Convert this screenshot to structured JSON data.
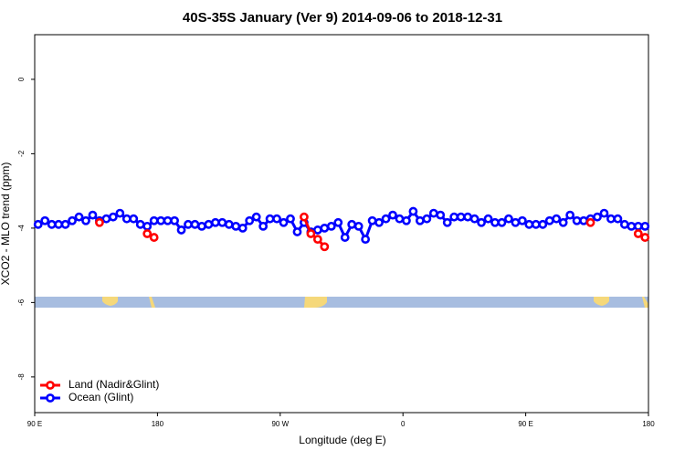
{
  "chart_data": {
    "type": "line",
    "title": "40S-35S January (Ver 9)   2014-09-06 to 2018-12-31",
    "x_label": "Longitude (deg E)",
    "y_label": "XCO2 - MLO trend (ppm)",
    "xlim": [
      90,
      540
    ],
    "xticks": [
      {
        "value": 90,
        "label": "90 E"
      },
      {
        "value": 180,
        "label": "180"
      },
      {
        "value": 270,
        "label": "90 W"
      },
      {
        "value": 360,
        "label": "0"
      },
      {
        "value": 450,
        "label": "90 E"
      },
      {
        "value": 540,
        "label": "180"
      }
    ],
    "ylim": [
      -8.96,
      1.2
    ],
    "yticks": [
      0,
      -2,
      -4,
      -6,
      -8
    ],
    "legend": "bottomleft",
    "x": [
      92.5,
      97.5,
      102.5,
      107.5,
      112.5,
      117.5,
      122.5,
      127.5,
      132.5,
      137.5,
      142.5,
      147.5,
      152.5,
      157.5,
      162.5,
      167.5,
      172.5,
      177.5,
      182.5,
      187.5,
      192.5,
      197.5,
      202.5,
      207.5,
      212.5,
      217.5,
      222.5,
      227.5,
      232.5,
      237.5,
      242.5,
      247.5,
      252.5,
      257.5,
      262.5,
      267.5,
      272.5,
      277.5,
      282.5,
      287.5,
      292.5,
      297.5,
      302.5,
      307.5,
      312.5,
      317.5,
      322.5,
      327.5,
      332.5,
      337.5,
      342.5,
      347.5,
      352.5,
      357.5,
      362.5,
      367.5,
      372.5,
      377.5,
      382.5,
      387.5,
      392.5,
      397.5,
      402.5,
      407.5,
      412.5,
      417.5,
      422.5,
      427.5,
      432.5,
      437.5,
      442.5,
      447.5,
      452.5,
      457.5,
      462.5,
      467.5,
      472.5,
      477.5,
      482.5,
      487.5,
      492.5,
      497.5,
      502.5,
      507.5,
      512.5,
      517.5,
      522.5,
      527.5,
      532.5,
      537.5
    ],
    "series": [
      {
        "name": "Ocean (Glint)",
        "color": "#0000ff",
        "values": [
          -3.9,
          -3.8,
          -3.9,
          -3.9,
          -3.9,
          -3.8,
          -3.7,
          -3.8,
          -3.65,
          -3.8,
          -3.75,
          -3.7,
          -3.6,
          -3.75,
          -3.75,
          -3.9,
          -3.95,
          -3.8,
          -3.8,
          -3.8,
          -3.8,
          -4.05,
          -3.9,
          -3.9,
          -3.95,
          -3.9,
          -3.85,
          -3.85,
          -3.9,
          -3.95,
          -4.0,
          -3.8,
          -3.7,
          -3.95,
          -3.75,
          -3.75,
          -3.85,
          -3.75,
          -4.1,
          -3.85,
          -4.1,
          -4.05,
          -4.0,
          -3.95,
          -3.85,
          -4.25,
          -3.9,
          -3.95,
          -4.3,
          -3.8,
          -3.85,
          -3.75,
          -3.65,
          -3.75,
          -3.8,
          -3.55,
          -3.8,
          -3.75,
          -3.6,
          -3.65,
          -3.85,
          -3.7,
          -3.7,
          -3.7,
          -3.75,
          -3.85,
          -3.75,
          -3.85,
          -3.85,
          -3.75,
          -3.85,
          -3.8,
          -3.9,
          -3.9,
          -3.9,
          -3.8,
          -3.75,
          -3.85,
          -3.65,
          -3.8,
          -3.8,
          -3.75,
          -3.7,
          -3.6,
          -3.75,
          -3.75,
          -3.9,
          -3.95,
          -3.95,
          -3.95
        ]
      },
      {
        "name": "Land (Nadir&Glint)",
        "color": "#ff0000",
        "values": [
          null,
          null,
          null,
          null,
          null,
          null,
          null,
          null,
          null,
          -3.85,
          null,
          null,
          null,
          null,
          null,
          null,
          -4.15,
          -4.25,
          null,
          null,
          null,
          null,
          null,
          null,
          null,
          null,
          null,
          null,
          null,
          null,
          null,
          null,
          null,
          null,
          null,
          null,
          null,
          null,
          null,
          -3.7,
          -4.15,
          -4.3,
          -4.5,
          null,
          null,
          null,
          null,
          null,
          null,
          null,
          null,
          null,
          null,
          null,
          null,
          null,
          null,
          null,
          null,
          null,
          null,
          null,
          null,
          null,
          null,
          null,
          null,
          null,
          null,
          null,
          null,
          null,
          null,
          null,
          null,
          null,
          null,
          null,
          null,
          null,
          null,
          -3.85,
          null,
          null,
          null,
          null,
          null,
          null,
          -4.15,
          -4.25
        ]
      }
    ]
  }
}
